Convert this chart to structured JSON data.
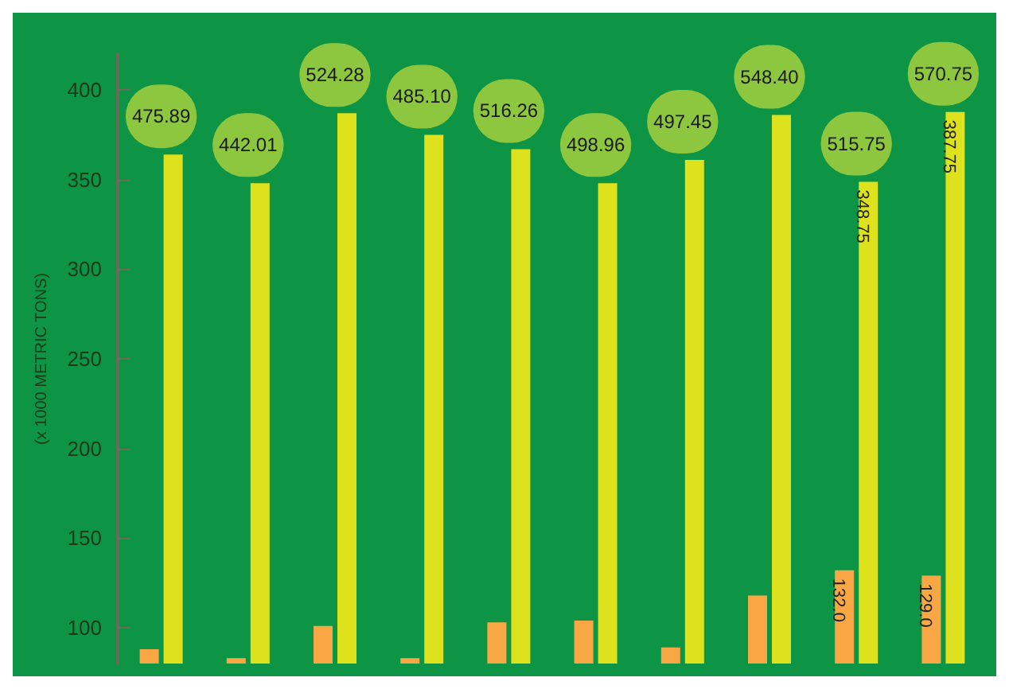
{
  "chart_data": {
    "type": "bar",
    "ylabel": "(x 1000 METRIC TONS)",
    "categories": [
      null,
      null,
      null,
      null,
      null,
      null,
      null,
      null,
      null,
      null
    ],
    "series": [
      {
        "color": "#f9a745",
        "values": [
          88,
          83,
          101,
          83,
          103,
          104,
          89,
          118,
          132.0,
          129.0
        ],
        "value_labels": [
          null,
          null,
          null,
          null,
          null,
          null,
          null,
          null,
          "132.0",
          "129.0"
        ]
      },
      {
        "color": "#dde21c",
        "values": [
          364,
          348,
          387,
          375,
          367,
          348,
          361,
          386,
          348.75,
          387.75
        ],
        "value_labels": [
          null,
          null,
          null,
          null,
          null,
          null,
          null,
          null,
          "348.75",
          "387.75"
        ]
      }
    ],
    "annotations": [
      "475.89",
      "442.01",
      "524.28",
      "485.10",
      "516.26",
      "498.96",
      "497.45",
      "548.40",
      "515.75",
      "570.75"
    ],
    "ylim": [
      80,
      420
    ],
    "yticks": [
      100,
      150,
      200,
      250,
      300,
      350,
      400
    ],
    "grid": false
  }
}
